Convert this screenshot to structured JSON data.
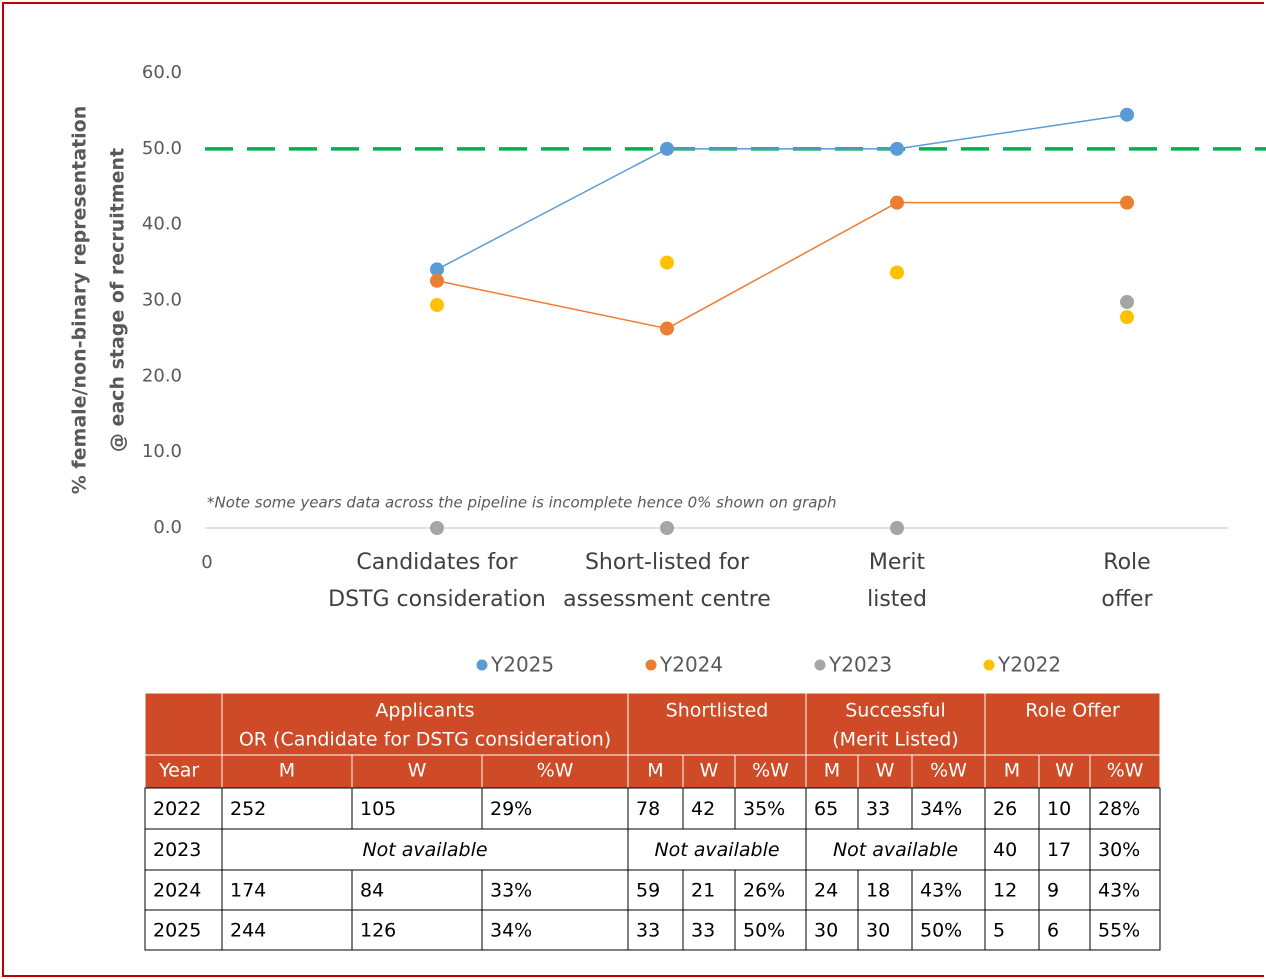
{
  "chart_data": {
    "type": "line",
    "y_label": [
      "% female/non-binary representation",
      "@ each stage of recruitment"
    ],
    "x_origin_label": "0",
    "categories": [
      [
        "Candidates for",
        "DSTG consideration"
      ],
      [
        "Short-listed for",
        "assessment centre"
      ],
      [
        "Merit",
        "listed"
      ],
      [
        "Role",
        "offer"
      ]
    ],
    "series": [
      {
        "name": "Y2025",
        "color": "#5b9bd5",
        "line": true,
        "values": [
          34.1,
          50,
          50,
          54.5
        ]
      },
      {
        "name": "Y2024",
        "color": "#ed7d31",
        "line": true,
        "values": [
          32.6,
          26.3,
          42.9,
          42.9
        ]
      },
      {
        "name": "Y2023",
        "color": "#a5a5a5",
        "line": false,
        "values": [
          0,
          0,
          0,
          29.8
        ]
      },
      {
        "name": "Y2022",
        "color": "#ffc000",
        "line": false,
        "values": [
          29.4,
          35,
          33.7,
          27.8
        ]
      }
    ],
    "ylim": [
      0,
      60
    ],
    "yticks": [
      {
        "value": 0,
        "label": "0.0"
      },
      {
        "value": 10,
        "label": "10.0"
      },
      {
        "value": 20,
        "label": "20.0"
      },
      {
        "value": 30,
        "label": "30.0"
      },
      {
        "value": 40,
        "label": "40.0"
      },
      {
        "value": 50,
        "label": "50.0"
      },
      {
        "value": 60,
        "label": "60.0"
      }
    ],
    "reference_line": {
      "value": 50,
      "color": "#00b050"
    },
    "annotation": "*Note some years data across the pipeline is incomplete hence 0% shown on graph",
    "grid": false,
    "legend": "bottom"
  },
  "table": {
    "groups": [
      {
        "lines": [
          ""
        ],
        "span": 1
      },
      {
        "lines": [
          "Applicants",
          "OR (Candidate for DSTG consideration)"
        ],
        "span": 3
      },
      {
        "lines": [
          "Shortlisted"
        ],
        "span": 3
      },
      {
        "lines": [
          "Successful",
          "(Merit Listed)"
        ],
        "span": 3
      },
      {
        "lines": [
          "Role Offer"
        ],
        "span": 3
      }
    ],
    "subheader": [
      "Year",
      "M",
      "W",
      "%W",
      "M",
      "W",
      "%W",
      "M",
      "W",
      "%W",
      "M",
      "W",
      "%W"
    ],
    "rows": [
      [
        "2022",
        "252",
        "105",
        "29%",
        "78",
        "42",
        "35%",
        "65",
        "33",
        "34%",
        "26",
        "10",
        "28%"
      ],
      [
        "2023",
        {
          "text": "Not available",
          "span": 3
        },
        {
          "text": "Not available",
          "span": 3
        },
        {
          "text": "Not available",
          "span": 3
        },
        "40",
        "17",
        "30%"
      ],
      [
        "2024",
        "174",
        "84",
        "33%",
        "59",
        "21",
        "26%",
        "24",
        "18",
        "43%",
        "12",
        "9",
        "43%"
      ],
      [
        "2025",
        "244",
        "126",
        "34%",
        "33",
        "33",
        "50%",
        "30",
        "30",
        "50%",
        "5",
        "6",
        "55%"
      ]
    ]
  }
}
